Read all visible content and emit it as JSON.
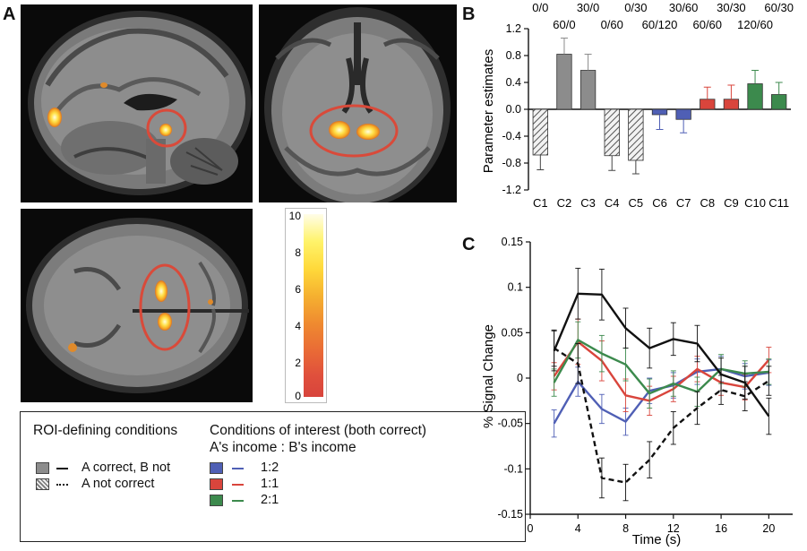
{
  "panel_labels": {
    "a": "A",
    "b": "B",
    "c": "C"
  },
  "colorbar": {
    "ticks": [
      "10",
      "8",
      "6",
      "4",
      "2",
      "0"
    ]
  },
  "legend": {
    "roi_title": "ROI-defining conditions",
    "interest_title": "Conditions of interest (both correct)",
    "interest_subtitle": "A's income : B's income",
    "roi_items": [
      "A correct, B not",
      "A not correct"
    ],
    "interest_items": [
      "1:2",
      "1:1",
      "2:1"
    ]
  },
  "colors": {
    "gray": "#8c8c8c",
    "blue": "#4f5fb5",
    "red": "#d9453c",
    "green": "#3c8a4d",
    "roi_ellipse": "#d94a3a"
  },
  "chart_data": [
    {
      "type": "bar",
      "panel": "B",
      "ylabel": "Parameter estimates",
      "ylim": [
        -1.2,
        1.2
      ],
      "yticks": [
        "1.2",
        "0.8",
        "0.4",
        "0.0",
        "-0.4",
        "-0.8",
        "-1.2"
      ],
      "categories": [
        "C1",
        "C2",
        "C3",
        "C4",
        "C5",
        "C6",
        "C7",
        "C8",
        "C9",
        "C10",
        "C11"
      ],
      "values": [
        -0.68,
        0.82,
        0.58,
        -0.69,
        -0.76,
        -0.08,
        -0.15,
        0.15,
        0.15,
        0.38,
        0.22
      ],
      "errors": [
        0.22,
        0.24,
        0.24,
        0.22,
        0.2,
        0.22,
        0.2,
        0.18,
        0.21,
        0.2,
        0.18
      ],
      "bar_styles": [
        "hatch",
        "gray",
        "gray",
        "hatch",
        "hatch",
        "blue",
        "blue",
        "red",
        "red",
        "green",
        "green"
      ],
      "top_labels_row1": [
        "0/0",
        "30/0",
        "0/30",
        "30/60",
        "30/30",
        "60/30"
      ],
      "top_labels_row2": [
        "60/0",
        "0/60",
        "60/120",
        "60/60",
        "120/60"
      ]
    },
    {
      "type": "line",
      "panel": "C",
      "xlabel": "Time (s)",
      "ylabel": "% Signal Change",
      "xlim": [
        0,
        22
      ],
      "ylim": [
        -0.15,
        0.15
      ],
      "xticks": [
        "0",
        "4",
        "8",
        "12",
        "16",
        "20"
      ],
      "yticks": [
        "0.15",
        "0.1",
        "0.05",
        "0",
        "-0.05",
        "-0.1",
        "-0.15"
      ],
      "x": [
        2,
        4,
        6,
        8,
        10,
        12,
        14,
        16,
        18,
        20
      ],
      "series": [
        {
          "name": "A correct, B not",
          "style": "solid",
          "color": "#111111",
          "values": [
            0.03,
            0.093,
            0.092,
            0.055,
            0.033,
            0.043,
            0.038,
            0.004,
            -0.005,
            -0.042
          ],
          "err": [
            0.022,
            0.028,
            0.028,
            0.022,
            0.022,
            0.018,
            0.02,
            0.018,
            0.018,
            0.02
          ]
        },
        {
          "name": "A not correct",
          "style": "dashed",
          "color": "#111111",
          "values": [
            0.033,
            0.016,
            -0.11,
            -0.115,
            -0.09,
            -0.055,
            -0.033,
            -0.013,
            -0.02,
            -0.003
          ],
          "err": [
            0.02,
            0.022,
            0.022,
            0.02,
            0.02,
            0.018,
            0.018,
            0.016,
            0.016,
            0.016
          ]
        },
        {
          "name": "1:2",
          "style": "solid",
          "color": "#4f5fb5",
          "values": [
            -0.05,
            -0.004,
            -0.034,
            -0.048,
            -0.014,
            -0.008,
            0.007,
            0.01,
            0.002,
            0.006
          ],
          "err": [
            0.015,
            0.016,
            0.016,
            0.015,
            0.014,
            0.014,
            0.014,
            0.014,
            0.014,
            0.014
          ]
        },
        {
          "name": "1:1",
          "style": "solid",
          "color": "#d9453c",
          "values": [
            0.002,
            0.04,
            0.019,
            -0.019,
            -0.025,
            -0.012,
            0.01,
            -0.005,
            -0.01,
            0.02
          ],
          "err": [
            0.015,
            0.025,
            0.022,
            0.018,
            0.016,
            0.014,
            0.014,
            0.014,
            0.014,
            0.014
          ]
        },
        {
          "name": "2:1",
          "style": "solid",
          "color": "#3c8a4d",
          "values": [
            -0.005,
            0.042,
            0.027,
            0.015,
            -0.017,
            -0.006,
            -0.015,
            0.01,
            0.005,
            0.007
          ],
          "err": [
            0.015,
            0.02,
            0.02,
            0.018,
            0.016,
            0.014,
            0.016,
            0.016,
            0.014,
            0.014
          ]
        }
      ]
    }
  ]
}
